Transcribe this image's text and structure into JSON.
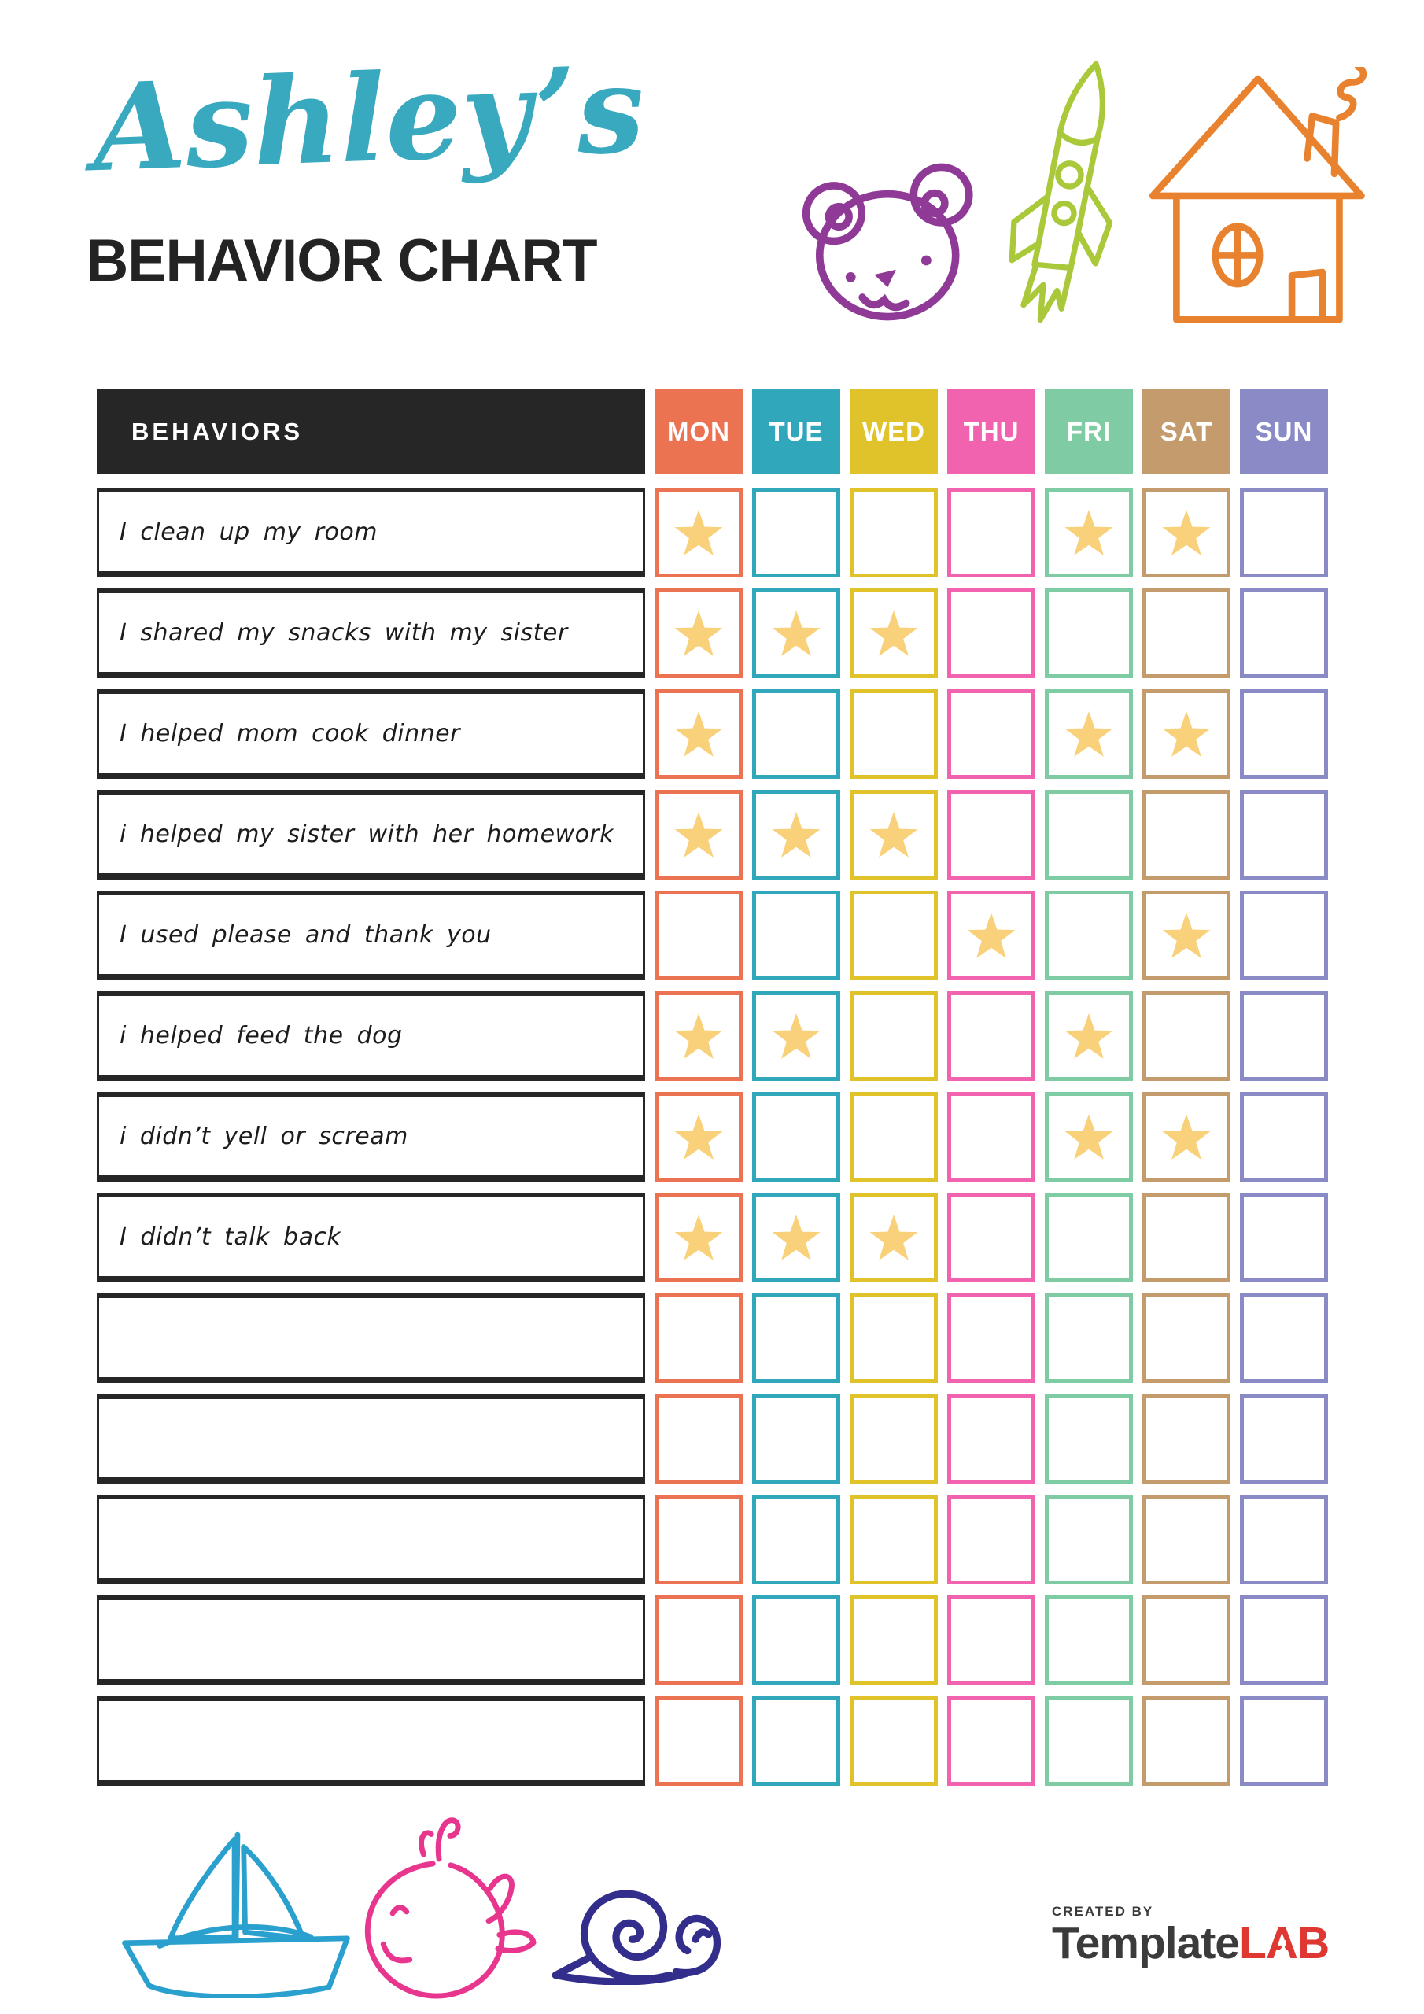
{
  "header": {
    "script_title": "Ashley’s",
    "main_title": "BEHAVIOR CHART",
    "script_title_color": "#38A9BE",
    "main_title_color": "#232323"
  },
  "table": {
    "behaviors_header": "BEHAVIORS",
    "behaviors_header_bg": "#262626",
    "days": [
      {
        "label": "MON",
        "color": "#EC7351"
      },
      {
        "label": "TUE",
        "color": "#31A7BB"
      },
      {
        "label": "WED",
        "color": "#E0C32A"
      },
      {
        "label": "THU",
        "color": "#F163AE"
      },
      {
        "label": "FRI",
        "color": "#7FCBA3"
      },
      {
        "label": "SAT",
        "color": "#C49B6D"
      },
      {
        "label": "SUN",
        "color": "#8A8AC6"
      }
    ],
    "star_color": "#F8D17A",
    "rows": [
      {
        "label": "I clean up my room",
        "stars": [
          1,
          0,
          0,
          0,
          1,
          1,
          0
        ]
      },
      {
        "label": "I shared my snacks with my sister",
        "stars": [
          1,
          1,
          1,
          0,
          0,
          0,
          0
        ]
      },
      {
        "label": "I helped mom cook dinner",
        "stars": [
          1,
          0,
          0,
          0,
          1,
          1,
          0
        ]
      },
      {
        "label": "i helped my sister with her homework",
        "stars": [
          1,
          1,
          1,
          0,
          0,
          0,
          0
        ]
      },
      {
        "label": "I used please and thank you",
        "stars": [
          0,
          0,
          0,
          1,
          0,
          1,
          0
        ]
      },
      {
        "label": "i helped feed the dog",
        "stars": [
          1,
          1,
          0,
          0,
          1,
          0,
          0
        ]
      },
      {
        "label": "i didn’t yell or scream",
        "stars": [
          1,
          0,
          0,
          0,
          1,
          1,
          0
        ]
      },
      {
        "label": "I didn’t talk back",
        "stars": [
          1,
          1,
          1,
          0,
          0,
          0,
          0
        ]
      },
      {
        "label": "",
        "stars": [
          0,
          0,
          0,
          0,
          0,
          0,
          0
        ]
      },
      {
        "label": "",
        "stars": [
          0,
          0,
          0,
          0,
          0,
          0,
          0
        ]
      },
      {
        "label": "",
        "stars": [
          0,
          0,
          0,
          0,
          0,
          0,
          0
        ]
      },
      {
        "label": "",
        "stars": [
          0,
          0,
          0,
          0,
          0,
          0,
          0
        ]
      },
      {
        "label": "",
        "stars": [
          0,
          0,
          0,
          0,
          0,
          0,
          0
        ]
      }
    ]
  },
  "doodles": {
    "bear_color": "#8E3A96",
    "rocket_color": "#A9C93A",
    "house_color": "#E8822F",
    "sailboat_color": "#2AA0CE",
    "whale_color": "#E8368F",
    "snail_color": "#332E8C",
    "icon_names": [
      "teddy-bear-icon",
      "rocket-icon",
      "house-icon",
      "sailboat-icon",
      "whale-icon",
      "snail-icon",
      "flask-icon",
      "star-icon"
    ]
  },
  "footer": {
    "created_by": "CREATED BY",
    "brand_primary": "Template",
    "brand_accent_l": "L",
    "brand_accent_a": "A",
    "brand_accent_b": "B"
  }
}
